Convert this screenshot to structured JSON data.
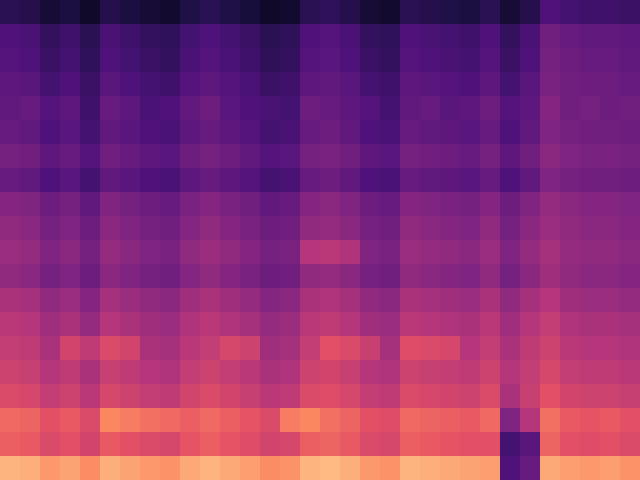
{
  "chart_data": {
    "type": "heatmap",
    "tick_labels": false,
    "zlim": [
      20,
      100
    ],
    "cells": [
      [
        88,
        87,
        83,
        85,
        81,
        87,
        85,
        83,
        82,
        86,
        88,
        86,
        84,
        81,
        82,
        88,
        89,
        87,
        83,
        82,
        88,
        87,
        86,
        85,
        84,
        40,
        45,
        86,
        84,
        83,
        84,
        82
      ],
      [
        73,
        72,
        68,
        70,
        66,
        72,
        70,
        68,
        67,
        71,
        73,
        71,
        69,
        66,
        67,
        73,
        74,
        72,
        68,
        67,
        73,
        72,
        71,
        70,
        70,
        38,
        42,
        74,
        70,
        69,
        70,
        68
      ],
      [
        75,
        74,
        70,
        72,
        68,
        80,
        78,
        76,
        75,
        73,
        75,
        73,
        71,
        68,
        78,
        80,
        76,
        74,
        70,
        69,
        75,
        74,
        73,
        72,
        75,
        50,
        60,
        76,
        72,
        71,
        72,
        70
      ],
      [
        68,
        67,
        63,
        65,
        61,
        67,
        65,
        63,
        62,
        66,
        68,
        66,
        64,
        61,
        62,
        68,
        69,
        67,
        63,
        62,
        68,
        67,
        66,
        65,
        68,
        58,
        64,
        70,
        66,
        65,
        65,
        64
      ],
      [
        65,
        64,
        60,
        62,
        58,
        64,
        62,
        60,
        59,
        63,
        65,
        63,
        61,
        58,
        59,
        65,
        66,
        64,
        60,
        59,
        65,
        64,
        63,
        62,
        65,
        60,
        63,
        67,
        63,
        62,
        62,
        61
      ],
      [
        63,
        62,
        58,
        66,
        62,
        68,
        66,
        58,
        57,
        61,
        63,
        67,
        65,
        56,
        57,
        63,
        70,
        68,
        64,
        57,
        69,
        68,
        67,
        60,
        63,
        58,
        62,
        65,
        61,
        60,
        60,
        59
      ],
      [
        61,
        60,
        56,
        58,
        54,
        60,
        58,
        56,
        55,
        59,
        61,
        59,
        57,
        54,
        55,
        61,
        62,
        60,
        56,
        55,
        61,
        60,
        59,
        58,
        61,
        56,
        60,
        63,
        59,
        58,
        58,
        57
      ],
      [
        58,
        57,
        53,
        55,
        51,
        57,
        55,
        53,
        52,
        56,
        58,
        56,
        54,
        51,
        52,
        58,
        59,
        57,
        53,
        52,
        58,
        57,
        56,
        55,
        58,
        53,
        57,
        60,
        56,
        55,
        55,
        54
      ],
      [
        53,
        52,
        48,
        50,
        46,
        52,
        50,
        48,
        47,
        51,
        53,
        51,
        49,
        46,
        47,
        53,
        54,
        52,
        48,
        47,
        53,
        52,
        51,
        50,
        53,
        48,
        52,
        56,
        53,
        52,
        52,
        51
      ],
      [
        55,
        54,
        50,
        52,
        48,
        54,
        52,
        50,
        49,
        53,
        55,
        53,
        51,
        48,
        49,
        60,
        61,
        59,
        50,
        49,
        55,
        54,
        53,
        52,
        55,
        50,
        54,
        57,
        54,
        53,
        53,
        52
      ],
      [
        53,
        52,
        48,
        50,
        46,
        52,
        50,
        48,
        47,
        51,
        53,
        51,
        49,
        46,
        47,
        53,
        54,
        52,
        48,
        47,
        53,
        52,
        51,
        50,
        53,
        48,
        52,
        55,
        53,
        52,
        52,
        51
      ],
      [
        51,
        50,
        46,
        48,
        44,
        50,
        48,
        46,
        45,
        49,
        51,
        49,
        47,
        44,
        45,
        51,
        52,
        50,
        46,
        45,
        51,
        50,
        49,
        48,
        51,
        46,
        50,
        54,
        52,
        51,
        51,
        50
      ],
      [
        45,
        44,
        40,
        42,
        38,
        44,
        42,
        40,
        39,
        43,
        45,
        43,
        41,
        38,
        39,
        45,
        46,
        44,
        40,
        39,
        45,
        44,
        43,
        42,
        45,
        40,
        44,
        50,
        48,
        47,
        47,
        46
      ],
      [
        48,
        47,
        43,
        45,
        41,
        47,
        45,
        43,
        42,
        46,
        48,
        46,
        44,
        41,
        42,
        48,
        49,
        47,
        43,
        42,
        48,
        47,
        46,
        45,
        48,
        43,
        47,
        52,
        50,
        49,
        49,
        48
      ],
      [
        45,
        44,
        40,
        42,
        38,
        44,
        42,
        40,
        39,
        43,
        45,
        43,
        41,
        38,
        39,
        45,
        46,
        44,
        40,
        39,
        45,
        44,
        43,
        42,
        45,
        40,
        44,
        50,
        48,
        47,
        47,
        46
      ],
      [
        44,
        45,
        41,
        43,
        37,
        45,
        43,
        39,
        40,
        44,
        46,
        42,
        40,
        39,
        38,
        46,
        45,
        43,
        41,
        38,
        44,
        45,
        42,
        43,
        46,
        41,
        43,
        51,
        47,
        48,
        46,
        47
      ],
      [
        43,
        42,
        38,
        40,
        36,
        42,
        40,
        38,
        37,
        41,
        43,
        41,
        39,
        36,
        37,
        43,
        44,
        42,
        38,
        37,
        43,
        42,
        41,
        40,
        43,
        38,
        42,
        49,
        47,
        46,
        46,
        45
      ],
      [
        41,
        40,
        36,
        38,
        34,
        40,
        38,
        36,
        35,
        39,
        41,
        39,
        37,
        34,
        35,
        41,
        42,
        40,
        36,
        35,
        41,
        40,
        39,
        38,
        41,
        36,
        40,
        48,
        46,
        45,
        45,
        44
      ],
      [
        40,
        39,
        35,
        37,
        33,
        39,
        37,
        35,
        34,
        38,
        40,
        38,
        36,
        33,
        34,
        40,
        41,
        39,
        35,
        34,
        40,
        39,
        38,
        37,
        40,
        35,
        39,
        47,
        45,
        44,
        44,
        43
      ],
      [
        33,
        32,
        28,
        30,
        26,
        32,
        30,
        28,
        27,
        31,
        33,
        31,
        29,
        26,
        27,
        33,
        34,
        32,
        28,
        27,
        33,
        32,
        31,
        30,
        33,
        28,
        32,
        40,
        38,
        37,
        37,
        36
      ]
    ]
  }
}
